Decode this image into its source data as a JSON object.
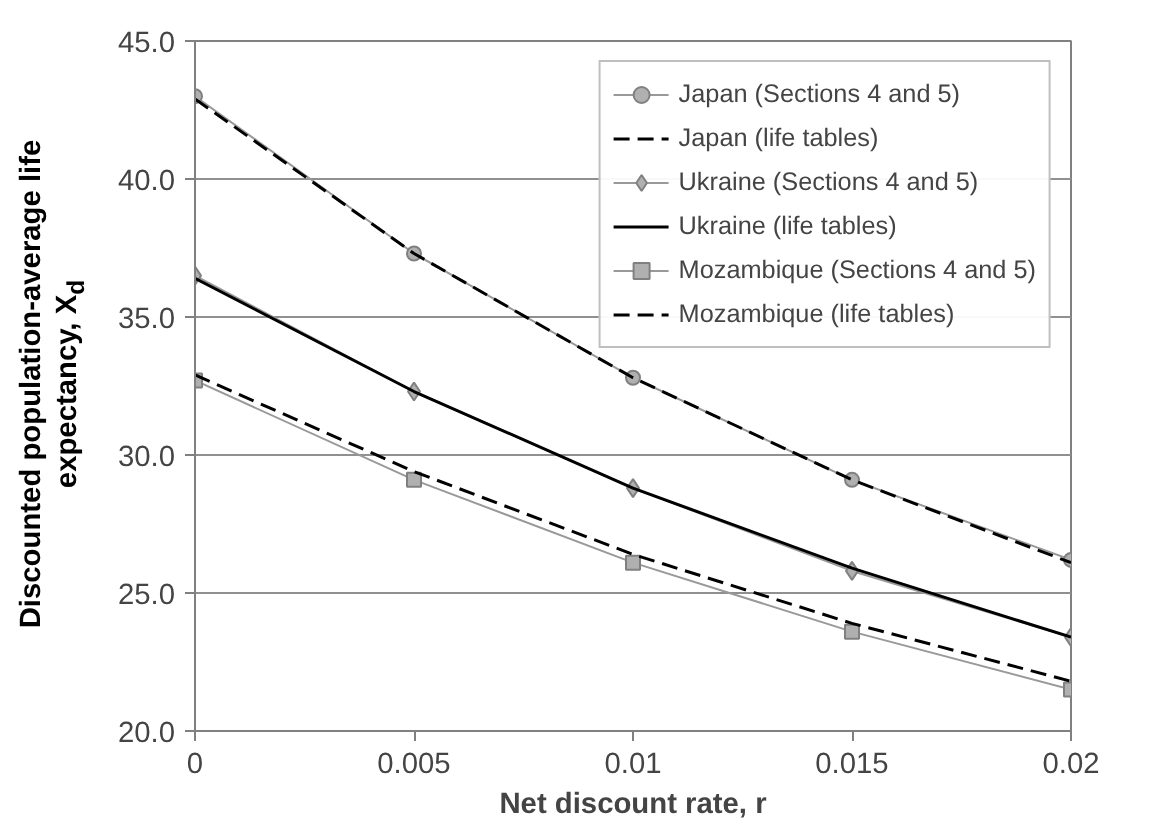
{
  "chart_data": {
    "type": "line",
    "xlabel": "Net discount rate, r",
    "ylabel": "Discounted population-average life expectancy, X$_{d}$",
    "x": [
      0,
      0.005,
      0.01,
      0.015,
      0.02
    ],
    "xlim": [
      0,
      0.02
    ],
    "xticks": [
      0,
      0.005,
      0.01,
      0.015,
      0.02
    ],
    "ylim": [
      20,
      45
    ],
    "yticks": [
      {
        "value": 20,
        "label": "20.0"
      },
      {
        "value": 25,
        "label": "25.0"
      },
      {
        "value": 30,
        "label": "30.0"
      },
      {
        "value": 35,
        "label": "35.0"
      },
      {
        "value": 40,
        "label": "40.0"
      },
      {
        "value": 45,
        "label": "45.0"
      }
    ],
    "grid": "y",
    "legend": "top right",
    "series": [
      {
        "name": "Japan (Sections 4 and 5)",
        "color": "#999999",
        "marker": "circle",
        "line_style": "solid",
        "values": [
          43.0,
          37.3,
          32.8,
          29.1,
          26.2
        ]
      },
      {
        "name": "Japan (life tables)",
        "color": "#000000",
        "marker": "none",
        "line_style": "dashed",
        "values": [
          42.9,
          37.3,
          32.8,
          29.1,
          26.1
        ]
      },
      {
        "name": "Ukraine (Sections 4 and 5)",
        "color": "#999999",
        "marker": "diamond",
        "line_style": "solid",
        "values": [
          36.5,
          32.3,
          28.8,
          25.8,
          23.4
        ]
      },
      {
        "name": "Ukraine (life tables)",
        "color": "#000000",
        "marker": "none",
        "line_style": "solid",
        "values": [
          36.4,
          32.3,
          28.8,
          25.9,
          23.4
        ]
      },
      {
        "name": "Mozambique (Sections 4 and 5)",
        "color": "#999999",
        "marker": "square",
        "line_style": "solid",
        "values": [
          32.7,
          29.1,
          26.1,
          23.6,
          21.5
        ]
      },
      {
        "name": "Mozambique (life tables)",
        "color": "#000000",
        "marker": "none",
        "line_style": "dashed",
        "values": [
          32.9,
          29.4,
          26.4,
          23.9,
          21.8
        ]
      }
    ]
  }
}
